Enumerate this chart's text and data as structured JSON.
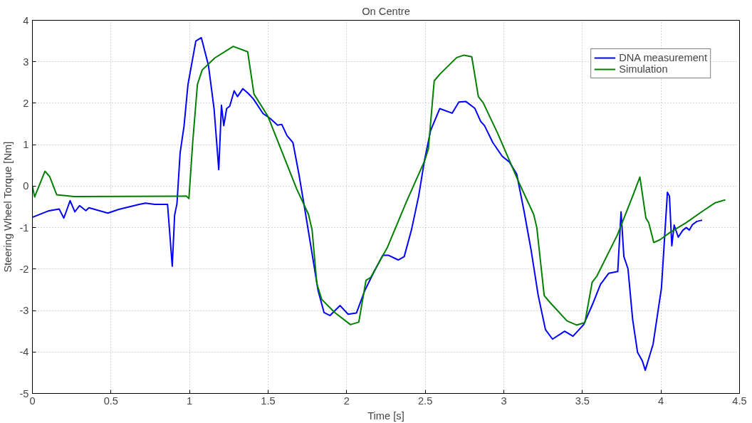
{
  "chart_data": {
    "type": "line",
    "title": "On Centre",
    "xlabel": "Time [s]",
    "ylabel": "Steering Wheel Torque [Nm]",
    "xlim": [
      0,
      4.5
    ],
    "ylim": [
      -5,
      4
    ],
    "xticks": [
      0,
      0.5,
      1,
      1.5,
      2,
      2.5,
      3,
      3.5,
      4,
      4.5
    ],
    "yticks": [
      -5,
      -4,
      -3,
      -2,
      -1,
      0,
      1,
      2,
      3,
      4
    ],
    "grid": true,
    "legend": "top right",
    "line_style": "solid",
    "marker": "none",
    "series": [
      {
        "name": "DNA measurement",
        "color": "#0000ff",
        "x": [
          0,
          0.1,
          0.17,
          0.2,
          0.24,
          0.27,
          0.3,
          0.34,
          0.36,
          0.48,
          0.55,
          0.68,
          0.72,
          0.78,
          0.86,
          0.89,
          0.905,
          0.92,
          0.94,
          0.965,
          0.99,
          1.04,
          1.075,
          1.12,
          1.156,
          1.186,
          1.203,
          1.218,
          1.236,
          1.256,
          1.284,
          1.305,
          1.339,
          1.375,
          1.407,
          1.468,
          1.514,
          1.56,
          1.587,
          1.62,
          1.658,
          1.696,
          1.735,
          1.773,
          1.818,
          1.856,
          1.894,
          1.958,
          2.009,
          2.062,
          2.115,
          2.168,
          2.229,
          2.267,
          2.328,
          2.366,
          2.412,
          2.458,
          2.496,
          2.534,
          2.592,
          2.671,
          2.714,
          2.759,
          2.815,
          2.853,
          2.877,
          2.93,
          2.99,
          3.036,
          3.082,
          3.128,
          3.173,
          3.219,
          3.265,
          3.31,
          3.387,
          3.44,
          3.508,
          3.569,
          3.615,
          3.668,
          3.725,
          3.746,
          3.764,
          3.79,
          3.82,
          3.851,
          3.882,
          3.9,
          3.95,
          4.003,
          4.041,
          4.054,
          4.069,
          4.084,
          4.11,
          4.14,
          4.161,
          4.181,
          4.2,
          4.229,
          4.262
        ],
        "values": [
          -0.75,
          -0.6,
          -0.55,
          -0.77,
          -0.35,
          -0.62,
          -0.47,
          -0.59,
          -0.52,
          -0.65,
          -0.56,
          -0.44,
          -0.41,
          -0.44,
          -0.44,
          -1.93,
          -0.7,
          -0.42,
          0.8,
          1.45,
          2.45,
          3.5,
          3.58,
          2.92,
          1.87,
          0.4,
          1.95,
          1.46,
          1.87,
          1.93,
          2.3,
          2.16,
          2.35,
          2.23,
          2.1,
          1.75,
          1.63,
          1.47,
          1.49,
          1.22,
          1.05,
          0.29,
          -0.59,
          -1.47,
          -2.52,
          -3.05,
          -3.12,
          -2.88,
          -3.09,
          -3.06,
          -2.52,
          -2.11,
          -1.67,
          -1.67,
          -1.78,
          -1.7,
          -1.06,
          -0.24,
          0.64,
          1.34,
          1.87,
          1.76,
          2.03,
          2.04,
          1.88,
          1.56,
          1.46,
          1.05,
          0.72,
          0.58,
          0.29,
          -0.59,
          -1.53,
          -2.64,
          -3.46,
          -3.69,
          -3.5,
          -3.62,
          -3.34,
          -2.81,
          -2.37,
          -2.1,
          -2.06,
          -0.62,
          -1.7,
          -1.99,
          -3.22,
          -4.01,
          -4.22,
          -4.44,
          -3.81,
          -2.46,
          -0.15,
          -0.24,
          -1.44,
          -0.94,
          -1.23,
          -1.06,
          -1.0,
          -1.06,
          -0.93,
          -0.85,
          -0.82
        ]
      },
      {
        "name": "Simulation",
        "color": "#008000",
        "x": [
          0,
          0.014,
          0.08,
          0.11,
          0.155,
          0.265,
          0.98,
          0.996,
          1.02,
          1.05,
          1.08,
          1.16,
          1.278,
          1.37,
          1.41,
          1.498,
          1.59,
          1.681,
          1.757,
          1.78,
          1.81,
          1.841,
          1.925,
          2.024,
          2.077,
          2.123,
          2.153,
          2.26,
          2.382,
          2.496,
          2.52,
          2.557,
          2.595,
          2.7,
          2.747,
          2.796,
          2.838,
          2.869,
          2.96,
          3.097,
          3.19,
          3.21,
          3.257,
          3.295,
          3.402,
          3.463,
          3.516,
          3.562,
          3.592,
          3.722,
          3.82,
          3.866,
          3.904,
          3.922,
          3.954,
          3.995,
          4.056,
          4.161,
          4.27,
          4.346,
          4.41
        ],
        "values": [
          0,
          -0.26,
          0.36,
          0.23,
          -0.21,
          -0.25,
          -0.24,
          -0.3,
          1.05,
          2.45,
          2.8,
          3.09,
          3.37,
          3.24,
          2.22,
          1.69,
          0.81,
          -0.06,
          -0.68,
          -1.06,
          -2.35,
          -2.73,
          -3.05,
          -3.34,
          -3.28,
          -2.27,
          -2.2,
          -1.47,
          -0.36,
          0.61,
          0.9,
          2.54,
          2.71,
          3.1,
          3.16,
          3.12,
          2.16,
          2.01,
          1.28,
          0.08,
          -0.68,
          -1.0,
          -2.64,
          -2.81,
          -3.25,
          -3.35,
          -3.29,
          -2.32,
          -2.17,
          -1.18,
          -0.24,
          0.22,
          -0.77,
          -0.88,
          -1.36,
          -1.29,
          -1.12,
          -0.88,
          -0.59,
          -0.4,
          -0.33
        ]
      }
    ]
  }
}
